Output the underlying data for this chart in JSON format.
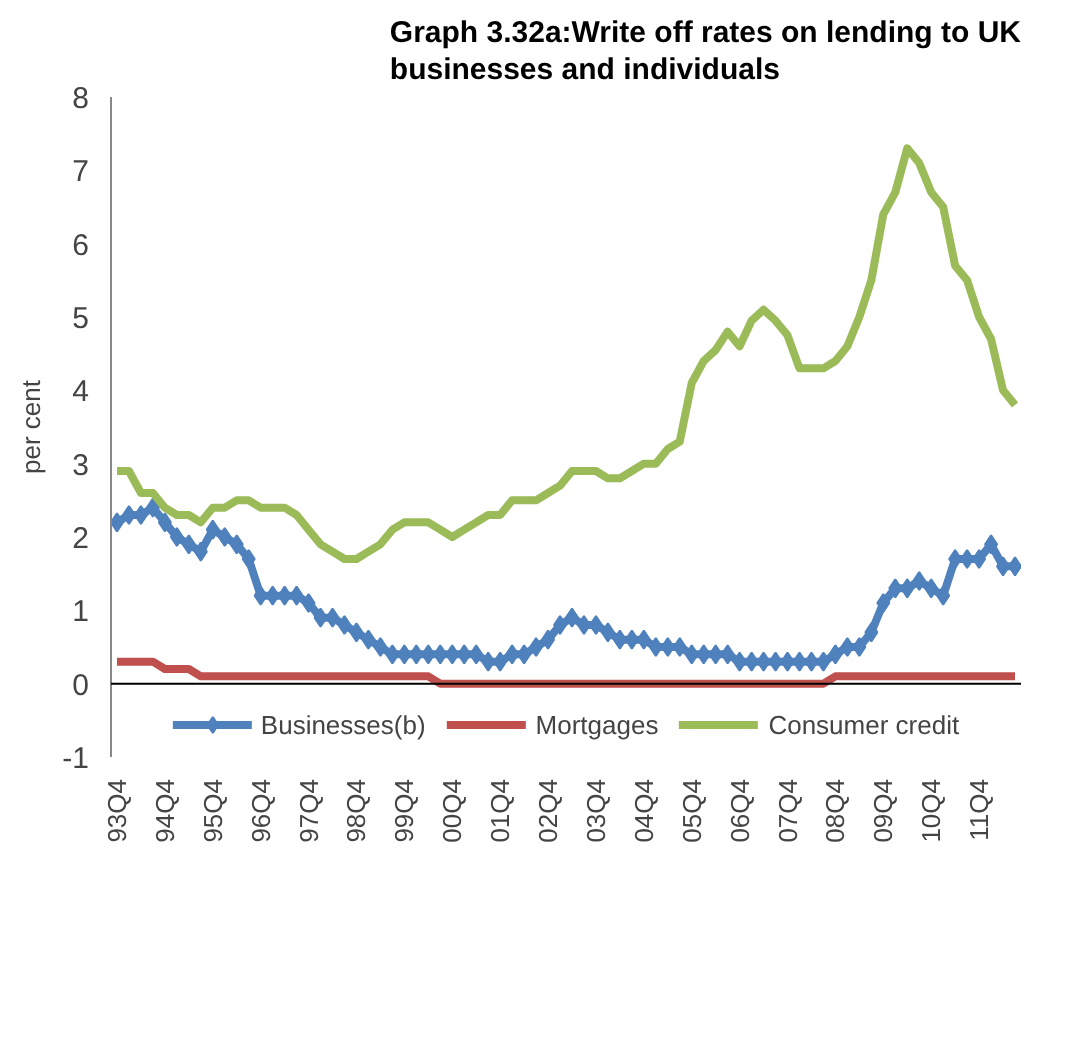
{
  "chart_data": {
    "type": "line",
    "title": "Graph 3.32a:Write off rates on lending to UK businesses and individuals",
    "ylabel": "per cent",
    "categories": [
      "93Q4",
      null,
      null,
      null,
      "94Q4",
      null,
      null,
      null,
      "95Q4",
      null,
      null,
      null,
      "96Q4",
      null,
      null,
      null,
      "97Q4",
      null,
      null,
      null,
      "98Q4",
      null,
      null,
      null,
      "99Q4",
      null,
      null,
      null,
      "00Q4",
      null,
      null,
      null,
      "01Q4",
      null,
      null,
      null,
      "02Q4",
      null,
      null,
      null,
      "03Q4",
      null,
      null,
      null,
      "04Q4",
      null,
      null,
      null,
      "05Q4",
      null,
      null,
      null,
      "06Q4",
      null,
      null,
      null,
      "07Q4",
      null,
      null,
      null,
      "08Q4",
      null,
      null,
      null,
      "09Q4",
      null,
      null,
      null,
      "10Q4",
      null,
      null,
      null,
      "11Q4",
      null,
      null,
      null
    ],
    "ylim": [
      -1,
      8
    ],
    "yticks": [
      -1,
      0,
      1,
      2,
      3,
      4,
      5,
      6,
      7,
      8
    ],
    "legend": "bottom",
    "ref_lines": [
      {
        "axis": "y",
        "value": 0,
        "color": "#000000"
      }
    ],
    "series": [
      {
        "name": "Businesses(b)",
        "color": "#4f81bd",
        "marker": "diamond",
        "values": [
          2.2,
          2.3,
          2.3,
          2.4,
          2.2,
          2.0,
          1.9,
          1.8,
          2.1,
          2.0,
          1.9,
          1.7,
          1.2,
          1.2,
          1.2,
          1.2,
          1.1,
          0.9,
          0.9,
          0.8,
          0.7,
          0.6,
          0.5,
          0.4,
          0.4,
          0.4,
          0.4,
          0.4,
          0.4,
          0.4,
          0.4,
          0.3,
          0.3,
          0.4,
          0.4,
          0.5,
          0.6,
          0.8,
          0.9,
          0.8,
          0.8,
          0.7,
          0.6,
          0.6,
          0.6,
          0.5,
          0.5,
          0.5,
          0.4,
          0.4,
          0.4,
          0.4,
          0.3,
          0.3,
          0.3,
          0.3,
          0.3,
          0.3,
          0.3,
          0.3,
          0.4,
          0.5,
          0.5,
          0.7,
          1.1,
          1.3,
          1.3,
          1.4,
          1.3,
          1.2,
          1.7,
          1.7,
          1.7,
          1.9,
          1.6,
          1.6
        ]
      },
      {
        "name": "Mortgages",
        "color": "#c0504d",
        "marker": "none",
        "values": [
          0.3,
          0.3,
          0.3,
          0.3,
          0.2,
          0.2,
          0.2,
          0.1,
          0.1,
          0.1,
          0.1,
          0.1,
          0.1,
          0.1,
          0.1,
          0.1,
          0.1,
          0.1,
          0.1,
          0.1,
          0.1,
          0.1,
          0.1,
          0.1,
          0.1,
          0.1,
          0.1,
          0,
          0,
          0,
          0,
          0,
          0,
          0,
          0,
          0,
          0,
          0,
          0,
          0,
          0,
          0,
          0,
          0,
          0,
          0,
          0,
          0,
          0,
          0,
          0,
          0,
          0,
          0,
          0,
          0,
          0,
          0,
          0,
          0,
          0.1,
          0.1,
          0.1,
          0.1,
          0.1,
          0.1,
          0.1,
          0.1,
          0.1,
          0.1,
          0.1,
          0.1,
          0.1,
          0.1,
          0.1,
          0.1
        ]
      },
      {
        "name": "Consumer credit",
        "color": "#9bbb59",
        "marker": "none",
        "values": [
          2.9,
          2.9,
          2.6,
          2.6,
          2.4,
          2.3,
          2.3,
          2.2,
          2.4,
          2.4,
          2.5,
          2.5,
          2.4,
          2.4,
          2.4,
          2.3,
          2.1,
          1.9,
          1.8,
          1.7,
          1.7,
          1.8,
          1.9,
          2.1,
          2.2,
          2.2,
          2.2,
          2.1,
          2.0,
          2.1,
          2.2,
          2.3,
          2.3,
          2.5,
          2.5,
          2.5,
          2.6,
          2.7,
          2.9,
          2.9,
          2.9,
          2.8,
          2.8,
          2.9,
          3.0,
          3.0,
          3.2,
          3.3,
          4.1,
          4.4,
          4.55,
          4.8,
          4.6,
          4.95,
          5.1,
          4.95,
          4.75,
          4.3,
          4.3,
          4.3,
          4.4,
          4.6,
          5.0,
          5.5,
          6.4,
          6.7,
          7.3,
          7.1,
          6.7,
          6.5,
          5.7,
          5.5,
          5.0,
          4.7,
          4.0,
          3.8
        ]
      }
    ]
  }
}
